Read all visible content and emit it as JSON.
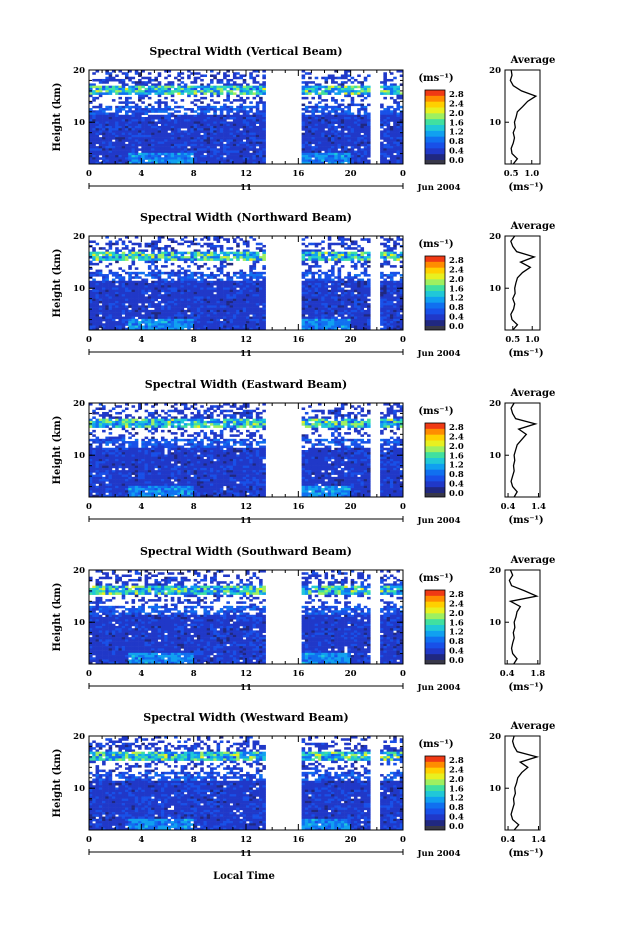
{
  "shared": {
    "ylabel": "Height (km)",
    "xlabel": "Local Time",
    "unit_label": "(ms⁻¹)",
    "avg_title": "Average",
    "avg_xlabel": "(ms⁻¹)",
    "date_label": "Jun 2004",
    "day_label": "11",
    "x_ticks": [
      "0",
      "4",
      "8",
      "12",
      "16",
      "20",
      "0"
    ],
    "y_ticks": [
      "20",
      "10"
    ],
    "colorbar_ticks": [
      "2.8",
      "2.4",
      "2.0",
      "1.6",
      "1.2",
      "0.8",
      "0.4",
      "0.0"
    ],
    "colorbar_colors": [
      "#f03a14",
      "#ff8c00",
      "#ffd000",
      "#e8f020",
      "#9ef060",
      "#40e0a0",
      "#20c8d8",
      "#10a0f0",
      "#1070f0",
      "#1850e8",
      "#2038c8",
      "#202880",
      "#383848"
    ]
  },
  "chart_data": [
    {
      "type": "heatmap",
      "title": "Spectral Width (Vertical Beam)",
      "beam": "vertical",
      "xlabel": "Local Time",
      "ylabel": "Height (km)",
      "xlim": [
        0,
        24
      ],
      "ylim": [
        2,
        20
      ],
      "data_gaps_hours": [
        [
          13.7,
          16.0
        ]
      ],
      "colorbar": {
        "label": "(ms⁻¹)",
        "range": [
          0.0,
          3.0
        ]
      },
      "average_profile": {
        "title": "Average",
        "xlabel": "(ms⁻¹)",
        "x_ticks": [
          "0.5",
          "1.0"
        ],
        "xlim": [
          0.35,
          1.2
        ],
        "height_km": [
          2,
          3,
          4,
          5,
          6,
          7,
          8,
          9,
          10,
          11,
          12,
          13,
          14,
          15,
          16,
          17,
          18,
          19,
          20
        ],
        "width_ms": [
          0.55,
          0.65,
          0.52,
          0.5,
          0.55,
          0.58,
          0.55,
          0.6,
          0.58,
          0.62,
          0.65,
          0.78,
          0.9,
          1.1,
          0.75,
          0.55,
          0.48,
          0.52,
          0.5
        ]
      }
    },
    {
      "type": "heatmap",
      "title": "Spectral Width (Northward Beam)",
      "beam": "northward",
      "xlabel": "Local Time",
      "ylabel": "Height (km)",
      "xlim": [
        0,
        24
      ],
      "ylim": [
        2,
        20
      ],
      "data_gaps_hours": [
        [
          13.7,
          16.0
        ]
      ],
      "colorbar": {
        "label": "(ms⁻¹)",
        "range": [
          0.0,
          3.0
        ]
      },
      "average_profile": {
        "title": "Average",
        "xlabel": "(ms⁻¹)",
        "x_ticks": [
          "0.5",
          "1.0"
        ],
        "xlim": [
          0.3,
          1.2
        ],
        "height_km": [
          2,
          3,
          4,
          5,
          6,
          7,
          8,
          9,
          10,
          11,
          12,
          13,
          14,
          15,
          16,
          17,
          18,
          19,
          20
        ],
        "width_ms": [
          0.5,
          0.62,
          0.48,
          0.45,
          0.52,
          0.55,
          0.5,
          0.56,
          0.55,
          0.58,
          0.62,
          0.75,
          0.95,
          0.7,
          1.05,
          0.6,
          0.5,
          0.45,
          0.55
        ]
      }
    },
    {
      "type": "heatmap",
      "title": "Spectral Width (Eastward Beam)",
      "beam": "eastward",
      "xlabel": "Local Time",
      "ylabel": "Height (km)",
      "xlim": [
        0,
        24
      ],
      "ylim": [
        2,
        20
      ],
      "data_gaps_hours": [
        [
          13.7,
          16.0
        ]
      ],
      "colorbar": {
        "label": "(ms⁻¹)",
        "range": [
          0.0,
          3.0
        ]
      },
      "average_profile": {
        "title": "Average",
        "xlabel": "(ms⁻¹)",
        "x_ticks": [
          "0.4",
          "1.4"
        ],
        "xlim": [
          0.3,
          1.45
        ],
        "height_km": [
          2,
          3,
          4,
          5,
          6,
          7,
          8,
          9,
          10,
          11,
          12,
          13,
          14,
          15,
          16,
          17,
          18,
          19,
          20
        ],
        "width_ms": [
          0.6,
          0.7,
          0.55,
          0.5,
          0.55,
          0.6,
          0.58,
          0.62,
          0.6,
          0.65,
          0.7,
          0.85,
          1.0,
          0.75,
          1.3,
          0.65,
          0.55,
          0.5,
          0.6
        ]
      }
    },
    {
      "type": "heatmap",
      "title": "Spectral Width (Southward Beam)",
      "beam": "southward",
      "xlabel": "Local Time",
      "ylabel": "Height (km)",
      "xlim": [
        0,
        24
      ],
      "ylim": [
        2,
        20
      ],
      "data_gaps_hours": [
        [
          13.7,
          16.0
        ]
      ],
      "colorbar": {
        "label": "(ms⁻¹)",
        "range": [
          0.0,
          3.0
        ]
      },
      "average_profile": {
        "title": "Average",
        "xlabel": "(ms⁻¹)",
        "x_ticks": [
          "0.4",
          "1.8"
        ],
        "xlim": [
          0.3,
          1.9
        ],
        "height_km": [
          2,
          3,
          4,
          5,
          6,
          7,
          8,
          9,
          10,
          11,
          12,
          13,
          14,
          15,
          16,
          17,
          18,
          19,
          20
        ],
        "width_ms": [
          0.7,
          0.85,
          0.65,
          0.6,
          0.65,
          0.72,
          0.68,
          0.75,
          0.72,
          0.8,
          0.85,
          1.0,
          0.55,
          1.75,
          1.2,
          0.6,
          0.5,
          0.65,
          0.55
        ]
      }
    },
    {
      "type": "heatmap",
      "title": "Spectral Width (Westward Beam)",
      "beam": "westward",
      "xlabel": "Local Time",
      "ylabel": "Height (km)",
      "xlim": [
        0,
        24
      ],
      "ylim": [
        2,
        20
      ],
      "data_gaps_hours": [
        [
          13.7,
          16.0
        ]
      ],
      "colorbar": {
        "label": "(ms⁻¹)",
        "range": [
          0.0,
          3.0
        ]
      },
      "average_profile": {
        "title": "Average",
        "xlabel": "(ms⁻¹)",
        "x_ticks": [
          "0.4",
          "1.4"
        ],
        "xlim": [
          0.3,
          1.45
        ],
        "height_km": [
          2,
          3,
          4,
          5,
          6,
          7,
          8,
          9,
          10,
          11,
          12,
          13,
          14,
          15,
          16,
          17,
          18,
          19,
          20
        ],
        "width_ms": [
          0.6,
          0.75,
          0.55,
          0.5,
          0.55,
          0.6,
          0.58,
          0.64,
          0.62,
          0.68,
          0.72,
          0.85,
          1.05,
          0.8,
          1.35,
          0.7,
          0.6,
          0.55,
          0.6
        ]
      }
    }
  ]
}
